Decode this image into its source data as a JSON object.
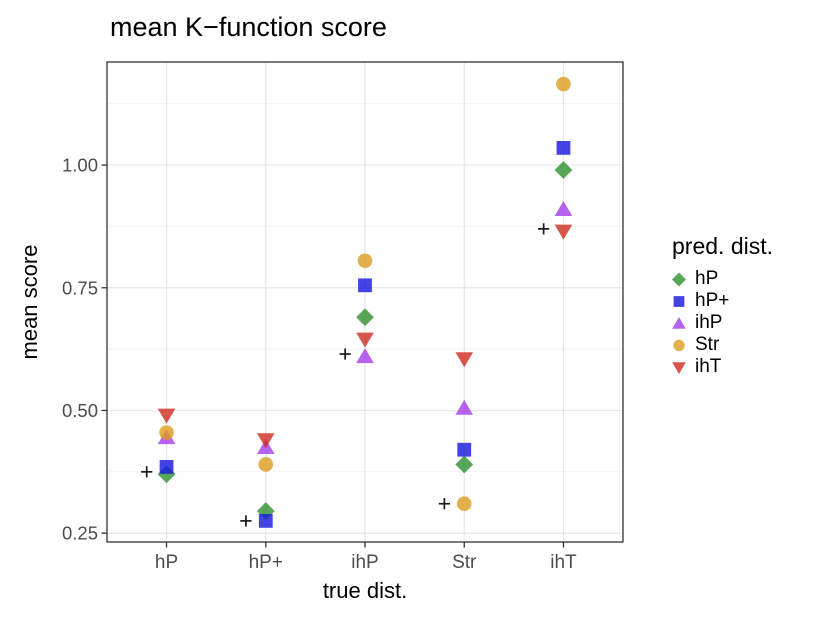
{
  "chart_data": {
    "type": "scatter",
    "title": "mean K−function score",
    "xlabel": "true dist.",
    "ylabel": "mean score",
    "categories": [
      "hP",
      "hP+",
      "ihP",
      "Str",
      "ihT"
    ],
    "ylim": [
      0.232,
      1.21
    ],
    "y_ticks": [
      0.25,
      0.5,
      0.75,
      1.0
    ],
    "y_tick_labels": [
      "0.25",
      "0.50",
      "0.75",
      "1.00"
    ],
    "y_minor_ticks": [
      0.375,
      0.625,
      0.875,
      1.125
    ],
    "grid": true,
    "legend_title": "pred. dist.",
    "legend_position": "right",
    "marker_alpha": 0.8,
    "series": [
      {
        "name": "hP",
        "marker": "diamond",
        "color": "#2E912F",
        "values": [
          0.37,
          0.295,
          0.69,
          0.39,
          0.99
        ]
      },
      {
        "name": "hP+",
        "marker": "square",
        "color": "#1515E0",
        "values": [
          0.385,
          0.275,
          0.755,
          0.42,
          1.035
        ]
      },
      {
        "name": "ihP",
        "marker": "triangle-up",
        "color": "#A63CEC",
        "values": [
          0.445,
          0.425,
          0.61,
          0.505,
          0.91
        ]
      },
      {
        "name": "Str",
        "marker": "circle",
        "color": "#DC9C1F",
        "values": [
          0.455,
          0.39,
          0.805,
          0.31,
          1.165
        ]
      },
      {
        "name": "ihT",
        "marker": "triangle-down",
        "color": "#CE2C20",
        "values": [
          0.49,
          0.44,
          0.645,
          0.605,
          0.865
        ]
      }
    ],
    "reference_series": {
      "name": "plus",
      "marker": "plus",
      "color": "#1a1a1a",
      "x_offset_units": -0.2,
      "values": [
        0.375,
        0.275,
        0.615,
        0.31,
        0.87
      ]
    },
    "style": {
      "panel_bg": "#ffffff",
      "panel_border": "#333333",
      "grid_major": "#e6e6e6",
      "grid_minor": "#f2f2f2",
      "tick_color": "#333333",
      "tick_label_color": "#4d4d4d"
    }
  }
}
